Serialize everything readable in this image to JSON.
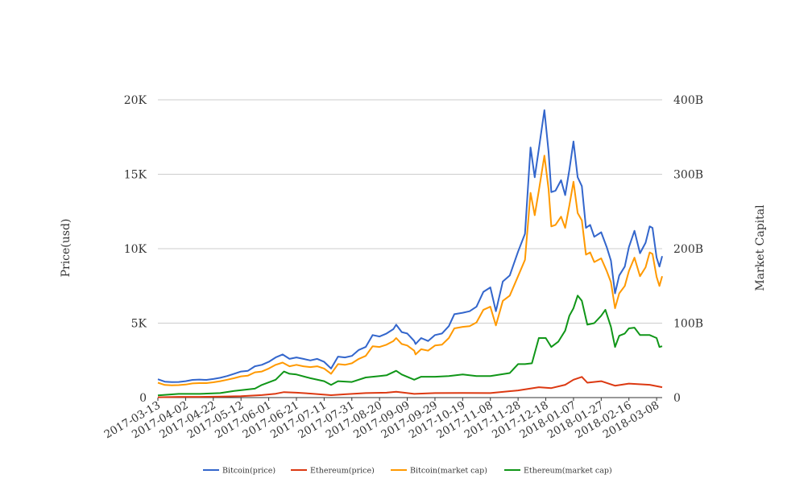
{
  "chart_data": {
    "type": "line",
    "title": "",
    "xlabel": "",
    "ylabel_left": "Price(usd)",
    "ylabel_right": "Market Capital",
    "x_tick_labels": [
      "2017-03-13",
      "2017-04-02",
      "2017-04-22",
      "2017-05-12",
      "2017-06-01",
      "2017-06-21",
      "2017-07-11",
      "2017-07-31",
      "2017-08-20",
      "2017-09-09",
      "2017-09-29",
      "2017-10-19",
      "2017-11-08",
      "2017-11-28",
      "2017-12-18",
      "2018-01-07",
      "2018-01-27",
      "2018-02-16",
      "2018-03-08"
    ],
    "y_left_ticks": [
      {
        "value": 0,
        "label": "0"
      },
      {
        "value": 5000,
        "label": "5K"
      },
      {
        "value": 10000,
        "label": "10K"
      },
      {
        "value": 15000,
        "label": "15K"
      },
      {
        "value": 20000,
        "label": "20K"
      }
    ],
    "y_right_ticks": [
      {
        "value": 0,
        "label": "0"
      },
      {
        "value": 100,
        "label": "100B"
      },
      {
        "value": 200,
        "label": "200B"
      },
      {
        "value": 300,
        "label": "300B"
      },
      {
        "value": 400,
        "label": "400B"
      }
    ],
    "ylim_left": [
      0,
      20000
    ],
    "ylim_right": [
      0,
      400
    ],
    "grid": true,
    "legend_position": "bottom",
    "series": [
      {
        "name": "Bitcoin(price)",
        "axis": "left",
        "color": "#3366cc",
        "points": [
          [
            "2017-03-13",
            1230
          ],
          [
            "2017-03-18",
            1070
          ],
          [
            "2017-03-23",
            1040
          ],
          [
            "2017-03-28",
            1050
          ],
          [
            "2017-04-02",
            1100
          ],
          [
            "2017-04-07",
            1190
          ],
          [
            "2017-04-12",
            1210
          ],
          [
            "2017-04-17",
            1190
          ],
          [
            "2017-04-22",
            1250
          ],
          [
            "2017-04-27",
            1330
          ],
          [
            "2017-05-02",
            1450
          ],
          [
            "2017-05-07",
            1600
          ],
          [
            "2017-05-12",
            1750
          ],
          [
            "2017-05-17",
            1800
          ],
          [
            "2017-05-22",
            2100
          ],
          [
            "2017-05-27",
            2200
          ],
          [
            "2017-06-01",
            2400
          ],
          [
            "2017-06-06",
            2700
          ],
          [
            "2017-06-11",
            2900
          ],
          [
            "2017-06-16",
            2600
          ],
          [
            "2017-06-21",
            2700
          ],
          [
            "2017-06-26",
            2600
          ],
          [
            "2017-07-01",
            2500
          ],
          [
            "2017-07-06",
            2600
          ],
          [
            "2017-07-11",
            2400
          ],
          [
            "2017-07-16",
            1950
          ],
          [
            "2017-07-21",
            2750
          ],
          [
            "2017-07-26",
            2700
          ],
          [
            "2017-07-31",
            2800
          ],
          [
            "2017-08-05",
            3200
          ],
          [
            "2017-08-10",
            3400
          ],
          [
            "2017-08-15",
            4200
          ],
          [
            "2017-08-20",
            4100
          ],
          [
            "2017-08-25",
            4300
          ],
          [
            "2017-08-30",
            4600
          ],
          [
            "2017-09-01",
            4900
          ],
          [
            "2017-09-05",
            4400
          ],
          [
            "2017-09-09",
            4300
          ],
          [
            "2017-09-14",
            3800
          ],
          [
            "2017-09-15",
            3600
          ],
          [
            "2017-09-19",
            4000
          ],
          [
            "2017-09-24",
            3800
          ],
          [
            "2017-09-29",
            4200
          ],
          [
            "2017-10-04",
            4300
          ],
          [
            "2017-10-09",
            4800
          ],
          [
            "2017-10-13",
            5600
          ],
          [
            "2017-10-19",
            5700
          ],
          [
            "2017-10-24",
            5800
          ],
          [
            "2017-10-29",
            6100
          ],
          [
            "2017-11-03",
            7100
          ],
          [
            "2017-11-08",
            7400
          ],
          [
            "2017-11-12",
            5800
          ],
          [
            "2017-11-17",
            7800
          ],
          [
            "2017-11-22",
            8200
          ],
          [
            "2017-11-28",
            9800
          ],
          [
            "2017-12-03",
            11000
          ],
          [
            "2017-12-07",
            16800
          ],
          [
            "2017-12-10",
            14800
          ],
          [
            "2017-12-13",
            16700
          ],
          [
            "2017-12-17",
            19300
          ],
          [
            "2017-12-20",
            16500
          ],
          [
            "2017-12-22",
            13800
          ],
          [
            "2017-12-25",
            13900
          ],
          [
            "2017-12-29",
            14600
          ],
          [
            "2018-01-01",
            13600
          ],
          [
            "2018-01-04",
            15300
          ],
          [
            "2018-01-07",
            17200
          ],
          [
            "2018-01-10",
            14800
          ],
          [
            "2018-01-13",
            14200
          ],
          [
            "2018-01-16",
            11400
          ],
          [
            "2018-01-19",
            11600
          ],
          [
            "2018-01-22",
            10800
          ],
          [
            "2018-01-27",
            11100
          ],
          [
            "2018-01-31",
            10100
          ],
          [
            "2018-02-03",
            9200
          ],
          [
            "2018-02-06",
            7000
          ],
          [
            "2018-02-09",
            8200
          ],
          [
            "2018-02-13",
            8800
          ],
          [
            "2018-02-16",
            10100
          ],
          [
            "2018-02-20",
            11200
          ],
          [
            "2018-02-24",
            9700
          ],
          [
            "2018-02-28",
            10400
          ],
          [
            "2018-03-03",
            11500
          ],
          [
            "2018-03-05",
            11400
          ],
          [
            "2018-03-08",
            9400
          ],
          [
            "2018-03-10",
            8800
          ],
          [
            "2018-03-12",
            9500
          ]
        ]
      },
      {
        "name": "Ethereum(price)",
        "axis": "left",
        "color": "#dc3912",
        "points": [
          [
            "2017-03-13",
            20
          ],
          [
            "2017-03-28",
            50
          ],
          [
            "2017-04-12",
            50
          ],
          [
            "2017-04-27",
            70
          ],
          [
            "2017-05-12",
            90
          ],
          [
            "2017-05-27",
            170
          ],
          [
            "2017-06-06",
            260
          ],
          [
            "2017-06-12",
            370
          ],
          [
            "2017-06-21",
            330
          ],
          [
            "2017-07-01",
            270
          ],
          [
            "2017-07-16",
            160
          ],
          [
            "2017-07-26",
            220
          ],
          [
            "2017-08-10",
            300
          ],
          [
            "2017-08-25",
            330
          ],
          [
            "2017-09-01",
            390
          ],
          [
            "2017-09-14",
            250
          ],
          [
            "2017-09-29",
            300
          ],
          [
            "2017-10-19",
            310
          ],
          [
            "2017-11-08",
            300
          ],
          [
            "2017-11-28",
            480
          ],
          [
            "2017-12-13",
            700
          ],
          [
            "2017-12-22",
            640
          ],
          [
            "2018-01-01",
            860
          ],
          [
            "2018-01-07",
            1200
          ],
          [
            "2018-01-13",
            1390
          ],
          [
            "2018-01-17",
            1000
          ],
          [
            "2018-01-27",
            1100
          ],
          [
            "2018-02-06",
            800
          ],
          [
            "2018-02-16",
            940
          ],
          [
            "2018-03-03",
            860
          ],
          [
            "2018-03-12",
            700
          ]
        ]
      },
      {
        "name": "Bitcoin(market cap)",
        "axis": "right",
        "color": "#ff9900",
        "points": [
          [
            "2017-03-13",
            20
          ],
          [
            "2017-03-18",
            17
          ],
          [
            "2017-03-23",
            16.5
          ],
          [
            "2017-03-28",
            16.8
          ],
          [
            "2017-04-02",
            17.5
          ],
          [
            "2017-04-07",
            19
          ],
          [
            "2017-04-12",
            19.5
          ],
          [
            "2017-04-17",
            19.5
          ],
          [
            "2017-04-22",
            20.5
          ],
          [
            "2017-04-27",
            22
          ],
          [
            "2017-05-02",
            24
          ],
          [
            "2017-05-07",
            26
          ],
          [
            "2017-05-12",
            28.5
          ],
          [
            "2017-05-17",
            29.5
          ],
          [
            "2017-05-22",
            34
          ],
          [
            "2017-05-27",
            35
          ],
          [
            "2017-06-01",
            39
          ],
          [
            "2017-06-06",
            44
          ],
          [
            "2017-06-11",
            47
          ],
          [
            "2017-06-16",
            42
          ],
          [
            "2017-06-21",
            44
          ],
          [
            "2017-06-26",
            42
          ],
          [
            "2017-07-01",
            41
          ],
          [
            "2017-07-06",
            42
          ],
          [
            "2017-07-11",
            39
          ],
          [
            "2017-07-16",
            32
          ],
          [
            "2017-07-21",
            45
          ],
          [
            "2017-07-26",
            44
          ],
          [
            "2017-07-31",
            46
          ],
          [
            "2017-08-05",
            52
          ],
          [
            "2017-08-10",
            56
          ],
          [
            "2017-08-15",
            69
          ],
          [
            "2017-08-20",
            68
          ],
          [
            "2017-08-25",
            71
          ],
          [
            "2017-08-30",
            76
          ],
          [
            "2017-09-01",
            80
          ],
          [
            "2017-09-05",
            72
          ],
          [
            "2017-09-09",
            70
          ],
          [
            "2017-09-14",
            63
          ],
          [
            "2017-09-15",
            58
          ],
          [
            "2017-09-19",
            65
          ],
          [
            "2017-09-24",
            63
          ],
          [
            "2017-09-29",
            70
          ],
          [
            "2017-10-04",
            71
          ],
          [
            "2017-10-09",
            80
          ],
          [
            "2017-10-13",
            93
          ],
          [
            "2017-10-19",
            95
          ],
          [
            "2017-10-24",
            96
          ],
          [
            "2017-10-29",
            101
          ],
          [
            "2017-11-03",
            118
          ],
          [
            "2017-11-08",
            122
          ],
          [
            "2017-11-12",
            97
          ],
          [
            "2017-11-17",
            130
          ],
          [
            "2017-11-22",
            137
          ],
          [
            "2017-11-28",
            163
          ],
          [
            "2017-12-03",
            185
          ],
          [
            "2017-12-07",
            275
          ],
          [
            "2017-12-10",
            245
          ],
          [
            "2017-12-13",
            278
          ],
          [
            "2017-12-17",
            325
          ],
          [
            "2017-12-20",
            280
          ],
          [
            "2017-12-22",
            230
          ],
          [
            "2017-12-25",
            232
          ],
          [
            "2017-12-29",
            243
          ],
          [
            "2018-01-01",
            228
          ],
          [
            "2018-01-04",
            258
          ],
          [
            "2018-01-07",
            290
          ],
          [
            "2018-01-10",
            248
          ],
          [
            "2018-01-13",
            238
          ],
          [
            "2018-01-16",
            192
          ],
          [
            "2018-01-19",
            195
          ],
          [
            "2018-01-22",
            182
          ],
          [
            "2018-01-27",
            187
          ],
          [
            "2018-01-31",
            170
          ],
          [
            "2018-02-03",
            155
          ],
          [
            "2018-02-06",
            120
          ],
          [
            "2018-02-09",
            140
          ],
          [
            "2018-02-13",
            150
          ],
          [
            "2018-02-16",
            170
          ],
          [
            "2018-02-20",
            188
          ],
          [
            "2018-02-24",
            163
          ],
          [
            "2018-02-28",
            175
          ],
          [
            "2018-03-03",
            195
          ],
          [
            "2018-03-05",
            193
          ],
          [
            "2018-03-08",
            162
          ],
          [
            "2018-03-10",
            150
          ],
          [
            "2018-03-12",
            163
          ]
        ]
      },
      {
        "name": "Ethereum(market cap)",
        "axis": "right",
        "color": "#109618",
        "points": [
          [
            "2017-03-13",
            3
          ],
          [
            "2017-03-28",
            5
          ],
          [
            "2017-04-12",
            5
          ],
          [
            "2017-04-27",
            6
          ],
          [
            "2017-05-07",
            9
          ],
          [
            "2017-05-22",
            12
          ],
          [
            "2017-05-27",
            17
          ],
          [
            "2017-06-06",
            24
          ],
          [
            "2017-06-12",
            35
          ],
          [
            "2017-06-16",
            32
          ],
          [
            "2017-06-21",
            31
          ],
          [
            "2017-07-01",
            26
          ],
          [
            "2017-07-11",
            22
          ],
          [
            "2017-07-16",
            17
          ],
          [
            "2017-07-21",
            22
          ],
          [
            "2017-07-31",
            21
          ],
          [
            "2017-08-10",
            27
          ],
          [
            "2017-08-20",
            29
          ],
          [
            "2017-08-25",
            30
          ],
          [
            "2017-09-01",
            36
          ],
          [
            "2017-09-05",
            31
          ],
          [
            "2017-09-14",
            24
          ],
          [
            "2017-09-19",
            28
          ],
          [
            "2017-09-29",
            28
          ],
          [
            "2017-10-09",
            29
          ],
          [
            "2017-10-19",
            31
          ],
          [
            "2017-10-29",
            29
          ],
          [
            "2017-11-08",
            29
          ],
          [
            "2017-11-22",
            33
          ],
          [
            "2017-11-28",
            45
          ],
          [
            "2017-12-03",
            45
          ],
          [
            "2017-12-08",
            46
          ],
          [
            "2017-12-13",
            80
          ],
          [
            "2017-12-18",
            80
          ],
          [
            "2017-12-22",
            68
          ],
          [
            "2017-12-27",
            75
          ],
          [
            "2018-01-01",
            90
          ],
          [
            "2018-01-04",
            110
          ],
          [
            "2018-01-07",
            120
          ],
          [
            "2018-01-10",
            137
          ],
          [
            "2018-01-13",
            130
          ],
          [
            "2018-01-17",
            98
          ],
          [
            "2018-01-22",
            100
          ],
          [
            "2018-01-27",
            110
          ],
          [
            "2018-01-30",
            118
          ],
          [
            "2018-02-03",
            95
          ],
          [
            "2018-02-06",
            68
          ],
          [
            "2018-02-09",
            83
          ],
          [
            "2018-02-13",
            86
          ],
          [
            "2018-02-16",
            93
          ],
          [
            "2018-02-20",
            94
          ],
          [
            "2018-02-24",
            84
          ],
          [
            "2018-03-03",
            84
          ],
          [
            "2018-03-08",
            80
          ],
          [
            "2018-03-10",
            68
          ],
          [
            "2018-03-12",
            69
          ]
        ]
      }
    ]
  }
}
